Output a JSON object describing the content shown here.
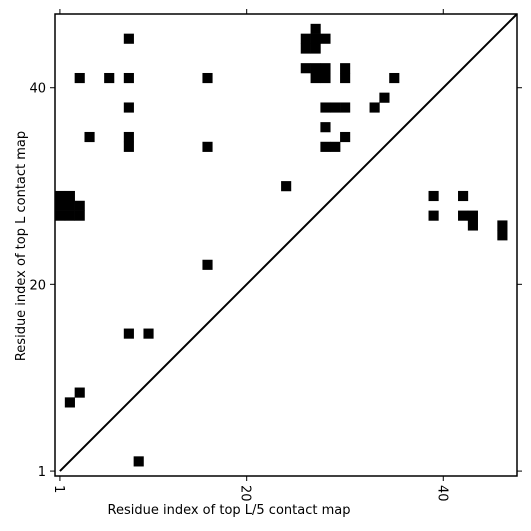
{
  "chart_data": {
    "type": "heatmap",
    "xlabel": "Residue index of top L/5 contact map",
    "ylabel": "Residue index of top L contact map",
    "xlim": [
      0.5,
      47.5
    ],
    "ylim": [
      0.5,
      47.5
    ],
    "x_ticks": [
      {
        "value": 1,
        "label": "1"
      },
      {
        "value": 20,
        "label": "20"
      },
      {
        "value": 40,
        "label": "40"
      }
    ],
    "y_ticks": [
      {
        "value": 1,
        "label": "1"
      },
      {
        "value": 20,
        "label": "20"
      },
      {
        "value": 40,
        "label": "40"
      }
    ],
    "diagonal": true,
    "grid": false,
    "cell_color": "#000000",
    "background_color": "#ffffff",
    "cells": [
      {
        "x": 9,
        "y": 2
      },
      {
        "x": 2,
        "y": 8
      },
      {
        "x": 3,
        "y": 9
      },
      {
        "x": 8,
        "y": 15
      },
      {
        "x": 10,
        "y": 15
      },
      {
        "x": 16,
        "y": 22
      },
      {
        "x": 1,
        "y": 27
      },
      {
        "x": 2,
        "y": 27
      },
      {
        "x": 3,
        "y": 27
      },
      {
        "x": 1,
        "y": 28
      },
      {
        "x": 2,
        "y": 28
      },
      {
        "x": 3,
        "y": 28
      },
      {
        "x": 1,
        "y": 29
      },
      {
        "x": 2,
        "y": 29
      },
      {
        "x": 24,
        "y": 30
      },
      {
        "x": 39,
        "y": 29
      },
      {
        "x": 42,
        "y": 29
      },
      {
        "x": 39,
        "y": 27
      },
      {
        "x": 42,
        "y": 27
      },
      {
        "x": 43,
        "y": 27
      },
      {
        "x": 43,
        "y": 26
      },
      {
        "x": 46,
        "y": 26
      },
      {
        "x": 46,
        "y": 25
      },
      {
        "x": 8,
        "y": 34
      },
      {
        "x": 8,
        "y": 35
      },
      {
        "x": 4,
        "y": 35
      },
      {
        "x": 16,
        "y": 34
      },
      {
        "x": 28,
        "y": 34
      },
      {
        "x": 29,
        "y": 34
      },
      {
        "x": 30,
        "y": 35
      },
      {
        "x": 28,
        "y": 36
      },
      {
        "x": 8,
        "y": 38
      },
      {
        "x": 28,
        "y": 38
      },
      {
        "x": 29,
        "y": 38
      },
      {
        "x": 30,
        "y": 38
      },
      {
        "x": 33,
        "y": 38
      },
      {
        "x": 34,
        "y": 39
      },
      {
        "x": 3,
        "y": 41
      },
      {
        "x": 6,
        "y": 41
      },
      {
        "x": 8,
        "y": 41
      },
      {
        "x": 16,
        "y": 41
      },
      {
        "x": 26,
        "y": 42
      },
      {
        "x": 27,
        "y": 42
      },
      {
        "x": 28,
        "y": 42
      },
      {
        "x": 27,
        "y": 41
      },
      {
        "x": 28,
        "y": 41
      },
      {
        "x": 30,
        "y": 42
      },
      {
        "x": 30,
        "y": 41
      },
      {
        "x": 35,
        "y": 41
      },
      {
        "x": 8,
        "y": 45
      },
      {
        "x": 26,
        "y": 45
      },
      {
        "x": 27,
        "y": 45
      },
      {
        "x": 28,
        "y": 45
      },
      {
        "x": 26,
        "y": 44
      },
      {
        "x": 27,
        "y": 44
      },
      {
        "x": 27,
        "y": 46
      }
    ]
  }
}
